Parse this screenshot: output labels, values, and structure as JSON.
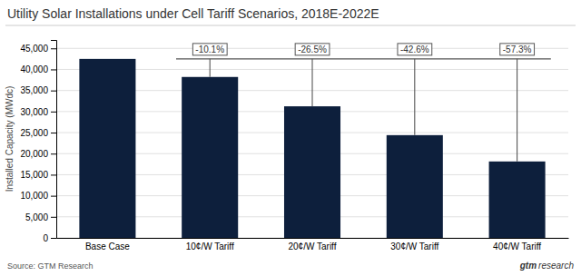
{
  "chart_data": {
    "type": "bar",
    "title": "Utility Solar Installations under Cell Tariff Scenarios, 2018E-2022E",
    "categories": [
      "Base Case",
      "10¢/W Tariff",
      "20¢/W Tariff",
      "30¢/W Tariff",
      "40¢/W Tariff"
    ],
    "values": [
      42500,
      38210,
      31238,
      24395,
      18143
    ],
    "color": "#0d1f3c",
    "ylabel": "Installed Capacity (MWdc)",
    "ylim": [
      0,
      47000
    ],
    "yticks": [
      0,
      {
        "value": 5000,
        "label": "5,000"
      },
      {
        "value": 10000,
        "label": "10,000"
      },
      {
        "value": 15000,
        "label": "15,000"
      },
      {
        "value": 20000,
        "label": "20,000"
      },
      {
        "value": 25000,
        "label": "25,000"
      },
      {
        "value": 30000,
        "label": "30,000"
      },
      {
        "value": 35000,
        "label": "35,000"
      },
      {
        "value": 40000,
        "label": "40,000"
      },
      {
        "value": 45000,
        "label": "45,000"
      }
    ],
    "grid": true,
    "annotations": [
      "-10.1%",
      "-26.5%",
      "-42.6%",
      "-57.3%"
    ],
    "source": "Source: GTM Research",
    "watermark": [
      "gtm",
      "research"
    ]
  }
}
